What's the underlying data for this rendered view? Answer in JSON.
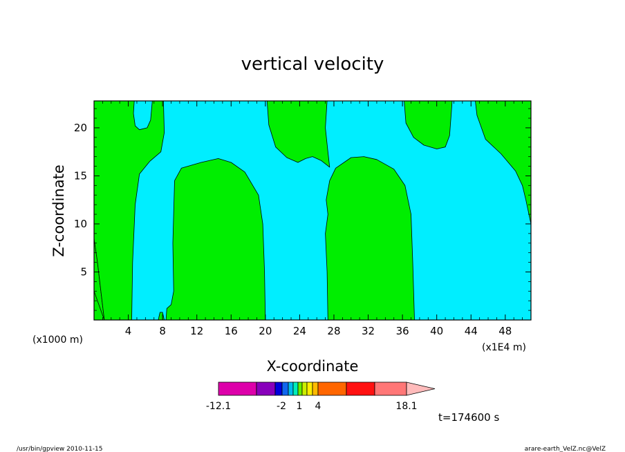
{
  "chart_data": {
    "type": "heatmap",
    "subtype": "filled-contour",
    "title": "vertical velocity",
    "xlabel": "X-coordinate",
    "ylabel": "Z-coordinate",
    "x_unit_left": "(x1000 m)",
    "x_unit_right": "(x1E4 m)",
    "xlim": [
      0,
      51
    ],
    "ylim": [
      0,
      22.8
    ],
    "x_ticks": [
      "4",
      "8",
      "12",
      "16",
      "20",
      "24",
      "28",
      "32",
      "36",
      "40",
      "44",
      "48"
    ],
    "y_ticks": [
      "5",
      "10",
      "15",
      "20"
    ],
    "colors": {
      "positive": "#00ee00",
      "negative": "#00eeff",
      "contour_line": "#000000"
    },
    "regions": [
      {
        "sign": "positive",
        "label": "left-column",
        "outline": [
          [
            0,
            8.5
          ],
          [
            0.4,
            6
          ],
          [
            0.8,
            3
          ],
          [
            1.2,
            0
          ],
          [
            0,
            0
          ]
        ]
      },
      {
        "sign": "positive",
        "label": "upper-left",
        "outline": [
          [
            0,
            22.8
          ],
          [
            4.7,
            22.8
          ],
          [
            4.6,
            21.5
          ],
          [
            4.8,
            20.2
          ],
          [
            5.3,
            19.8
          ],
          [
            6.2,
            20
          ],
          [
            6.6,
            20.8
          ],
          [
            6.8,
            22.8
          ],
          [
            8.1,
            22.8
          ],
          [
            8.2,
            19.5
          ],
          [
            7.8,
            17.5
          ],
          [
            6.5,
            16.5
          ],
          [
            5.3,
            15.2
          ],
          [
            4.8,
            12
          ],
          [
            4.5,
            6
          ],
          [
            4.4,
            0
          ],
          [
            0,
            0
          ],
          [
            0,
            3
          ],
          [
            1.2,
            0
          ],
          [
            0.8,
            3
          ],
          [
            0.4,
            6
          ],
          [
            0,
            8.5
          ]
        ]
      },
      {
        "sign": "positive",
        "label": "cell-12-18",
        "outline": [
          [
            8.4,
            0
          ],
          [
            8.5,
            1.2
          ],
          [
            9,
            1.6
          ],
          [
            9.3,
            3
          ],
          [
            9.2,
            8
          ],
          [
            9.4,
            14.5
          ],
          [
            10.2,
            15.8
          ],
          [
            12.5,
            16.4
          ],
          [
            14.5,
            16.8
          ],
          [
            16,
            16.4
          ],
          [
            17.6,
            15.4
          ],
          [
            19.2,
            13
          ],
          [
            19.7,
            10
          ],
          [
            19.9,
            5
          ],
          [
            20,
            0
          ]
        ]
      },
      {
        "sign": "positive",
        "label": "sliver-8",
        "outline": [
          [
            7.5,
            0
          ],
          [
            7.7,
            0.8
          ],
          [
            8,
            0.8
          ],
          [
            8.2,
            0
          ],
          [
            7.5,
            0
          ]
        ]
      },
      {
        "sign": "positive",
        "label": "upper-middle",
        "outline": [
          [
            20.2,
            22.8
          ],
          [
            20.4,
            20.3
          ],
          [
            21.2,
            18
          ],
          [
            22.5,
            16.9
          ],
          [
            23.8,
            16.4
          ],
          [
            24.7,
            16.8
          ],
          [
            25.5,
            17
          ],
          [
            26.5,
            16.6
          ],
          [
            27.5,
            15.9
          ],
          [
            27.3,
            17.5
          ],
          [
            27,
            20
          ],
          [
            27.2,
            22.8
          ]
        ]
      },
      {
        "sign": "positive",
        "label": "cell-28-36",
        "outline": [
          [
            27.3,
            0
          ],
          [
            27.2,
            5
          ],
          [
            27,
            9
          ],
          [
            27.3,
            11
          ],
          [
            27.1,
            12.5
          ],
          [
            27.5,
            14.5
          ],
          [
            28.2,
            15.8
          ],
          [
            30,
            16.9
          ],
          [
            31.5,
            17
          ],
          [
            33,
            16.7
          ],
          [
            35,
            15.7
          ],
          [
            36.3,
            14
          ],
          [
            37,
            11
          ],
          [
            37.2,
            6
          ],
          [
            37.4,
            0
          ]
        ]
      },
      {
        "sign": "positive",
        "label": "upper-right-cap",
        "outline": [
          [
            36.2,
            22.8
          ],
          [
            36.4,
            20.5
          ],
          [
            37.3,
            19
          ],
          [
            38.5,
            18.2
          ],
          [
            40,
            17.8
          ],
          [
            41,
            18
          ],
          [
            41.5,
            19.2
          ],
          [
            41.8,
            22.8
          ]
        ]
      },
      {
        "sign": "positive",
        "label": "upper-right-edge",
        "outline": [
          [
            44.5,
            22.8
          ],
          [
            44.7,
            21.3
          ],
          [
            45.7,
            18.8
          ],
          [
            47.5,
            17.3
          ],
          [
            49.2,
            15.5
          ],
          [
            50,
            14
          ],
          [
            50.4,
            12.5
          ],
          [
            51,
            10
          ],
          [
            51,
            22.8
          ]
        ]
      }
    ],
    "colorbar": {
      "tick_labels": [
        "-12.1",
        "-2",
        "1",
        "4",
        "18.1"
      ],
      "segments": [
        "#dd00aa",
        "#8800bb",
        "#0000dd",
        "#1166ee",
        "#00bbee",
        "#00eebb",
        "#66ee00",
        "#ccee00",
        "#ffee00",
        "#ffbb00",
        "#ff6600",
        "#ff1111",
        "#ff7777",
        "#ffbbbb"
      ]
    },
    "time_label": "t=174600 s",
    "footer_left": "/usr/bin/gpview   2010-11-15",
    "footer_right": "arare-earth_VelZ.nc@VelZ"
  }
}
